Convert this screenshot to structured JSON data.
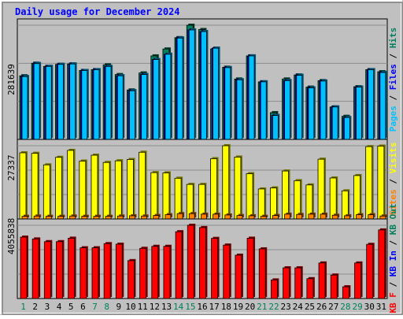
{
  "chart_data": {
    "type": "bar",
    "title": "Daily usage for December 2024",
    "x": [
      "1",
      "2",
      "3",
      "4",
      "5",
      "6",
      "7",
      "8",
      "9",
      "10",
      "11",
      "12",
      "13",
      "14",
      "15",
      "16",
      "17",
      "18",
      "19",
      "20",
      "21",
      "22",
      "23",
      "24",
      "25",
      "26",
      "27",
      "28",
      "29",
      "30",
      "31"
    ],
    "weekend_days": [
      "1",
      "7",
      "8",
      "14",
      "15",
      "21",
      "22",
      "28",
      "29"
    ],
    "grid": true,
    "panels": [
      {
        "name": "hits-files-pages",
        "ymax": 281639,
        "ymax_label": "281639",
        "side_labels": [
          "Pages",
          "Files",
          "Hits"
        ],
        "series": [
          {
            "name": "Hits",
            "color": "#00805c",
            "values": [
              157000,
              188000,
              180000,
              185000,
              186000,
              170000,
              172000,
              184000,
              160000,
              122000,
              164000,
              206000,
              223000,
              251000,
              281639,
              271000,
              223000,
              178000,
              149000,
              206000,
              142000,
              66000,
              149000,
              159000,
              129000,
              145000,
              80000,
              57000,
              130000,
              172000,
              167000
            ]
          },
          {
            "name": "Files",
            "color": "#0000ff",
            "values": [
              155000,
              187000,
              180000,
              185000,
              186000,
              170000,
              172000,
              180000,
              157000,
              120000,
              160000,
              197000,
              210000,
              250000,
              270000,
              266000,
              225000,
              177000,
              147000,
              206000,
              142000,
              59000,
              145000,
              158000,
              127000,
              144000,
              80000,
              54000,
              129000,
              172000,
              165000
            ]
          },
          {
            "name": "Pages",
            "color": "#00c0ff",
            "values": [
              155000,
              187000,
              180000,
              185000,
              186000,
              170000,
              172000,
              180000,
              157000,
              120000,
              160000,
              197000,
              210000,
              250000,
              270000,
              266000,
              225000,
              177000,
              147000,
              206000,
              142000,
              59000,
              145000,
              158000,
              127000,
              144000,
              80000,
              54000,
              129000,
              172000,
              165000
            ]
          }
        ]
      },
      {
        "name": "visits-sites",
        "ymax": 27337,
        "ymax_label": "27337",
        "side_labels": [
          "Sites",
          "Visits"
        ],
        "series": [
          {
            "name": "Visits",
            "color": "#ffff00",
            "values": [
              24700,
              24500,
              20200,
              23000,
              25600,
              21600,
              23800,
              21100,
              21700,
              22200,
              24900,
              17300,
              17200,
              15200,
              12900,
              12900,
              22500,
              27337,
              23100,
              16900,
              11200,
              11600,
              17900,
              14300,
              12700,
              22300,
              15300,
              10500,
              16200,
              27000,
              27200
            ]
          },
          {
            "name": "Sites",
            "color": "#ff8000",
            "values": [
              1000,
              1100,
              1000,
              1000,
              1100,
              1000,
              1000,
              1000,
              1100,
              1200,
              1100,
              1300,
              1600,
              2000,
              2000,
              1800,
              1800,
              1500,
              1300,
              1200,
              1000,
              1300,
              1800,
              1700,
              1800,
              1800,
              1400,
              1200,
              1600,
              1600,
              1100
            ]
          }
        ]
      },
      {
        "name": "kbytes",
        "ymax": 4055838,
        "ymax_label": "4055838",
        "side_labels": [
          "KB F",
          "KB In",
          "KB Out"
        ],
        "series": [
          {
            "name": "KB F",
            "color": "#ff0000",
            "values": [
              3400000,
              3300000,
              3150000,
              3150000,
              3340000,
              2810000,
              2810000,
              3040000,
              3010000,
              2100000,
              2780000,
              2890000,
              2890000,
              3700000,
              4055838,
              3930000,
              3330000,
              2960000,
              2400000,
              3340000,
              2750000,
              1030000,
              1700000,
              1700000,
              1100000,
              1970000,
              1300000,
              650000,
              1970000,
              3000000,
              3800000
            ]
          }
        ]
      }
    ]
  },
  "legend_colors": {
    "pages": "#00c0ff",
    "files": "#0000ff",
    "hits": "#00805c",
    "sites": "#ff8000",
    "visits": "#ffff00",
    "kbf": "#ff0000",
    "kbin": "#0000ff",
    "kbout": "#00805c"
  }
}
